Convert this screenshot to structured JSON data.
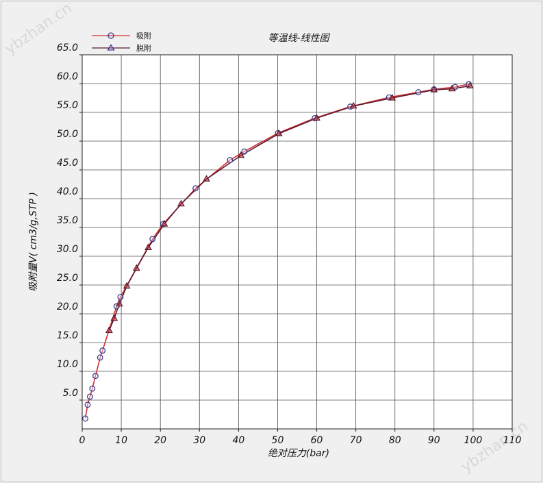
{
  "chart_data": {
    "type": "line",
    "title": "等温线-线性图",
    "xlabel": "绝对压力(bar)",
    "ylabel": "吸附量V( cm3/g,STP )",
    "xlim": [
      0,
      110
    ],
    "ylim": [
      0,
      65
    ],
    "x_ticks": [
      "0",
      "10",
      "20",
      "30",
      "40",
      "50",
      "60",
      "70",
      "80",
      "90",
      "100",
      "110"
    ],
    "y_ticks": [
      "5.0",
      "10.0",
      "15.0",
      "20.0",
      "25.0",
      "30.0",
      "35.0",
      "40.0",
      "45.0",
      "50.0",
      "55.0",
      "60.0",
      "65.0"
    ],
    "grid": true,
    "legend_position": "top-left",
    "series": [
      {
        "name": "吸附",
        "marker": "circle",
        "line_color": "#d03030",
        "marker_color": "#3a3a8c",
        "points": [
          [
            0.8,
            1.8
          ],
          [
            1.4,
            4.2
          ],
          [
            2.0,
            5.6
          ],
          [
            2.6,
            7.0
          ],
          [
            3.4,
            9.2
          ],
          [
            4.6,
            12.4
          ],
          [
            5.2,
            13.6
          ],
          [
            8.8,
            21.3
          ],
          [
            9.8,
            22.9
          ],
          [
            18.0,
            33.0
          ],
          [
            20.7,
            35.6
          ],
          [
            29.0,
            41.8
          ],
          [
            37.8,
            46.7
          ],
          [
            41.5,
            48.2
          ],
          [
            50.1,
            51.4
          ],
          [
            59.5,
            54.0
          ],
          [
            68.6,
            56.0
          ],
          [
            78.5,
            57.6
          ],
          [
            86.0,
            58.5
          ],
          [
            90.0,
            59.0
          ],
          [
            95.4,
            59.4
          ],
          [
            98.9,
            59.9
          ]
        ]
      },
      {
        "name": "脱附",
        "marker": "triangle",
        "line_color": "#5a1830",
        "marker_color": "#5a1830",
        "points": [
          [
            99.2,
            59.6
          ],
          [
            94.6,
            59.1
          ],
          [
            90.0,
            58.9
          ],
          [
            79.3,
            57.5
          ],
          [
            69.4,
            56.1
          ],
          [
            60.0,
            54.0
          ],
          [
            50.3,
            51.3
          ],
          [
            40.6,
            47.5
          ],
          [
            31.8,
            43.4
          ],
          [
            25.3,
            39.1
          ],
          [
            21.0,
            35.6
          ],
          [
            16.9,
            31.5
          ],
          [
            13.9,
            27.9
          ],
          [
            11.4,
            24.8
          ],
          [
            9.5,
            21.7
          ],
          [
            8.2,
            19.2
          ],
          [
            6.9,
            17.1
          ]
        ]
      }
    ]
  },
  "watermark": "ybzhan.cn"
}
